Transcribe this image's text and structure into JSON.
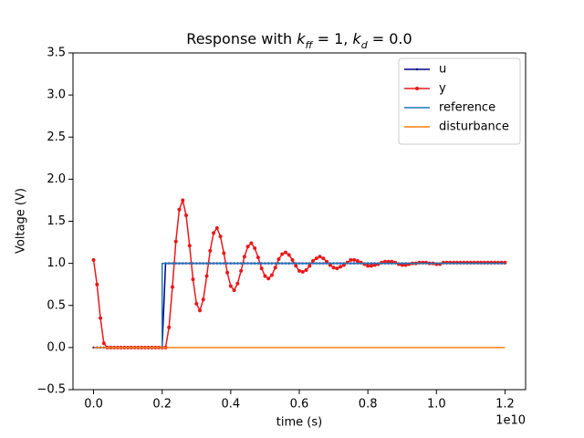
{
  "chart_data": {
    "type": "line",
    "title": [
      {
        "text": "Response with ",
        "style": "normal"
      },
      {
        "text": "k",
        "style": "italic"
      },
      {
        "text": "ff",
        "style": "sub"
      },
      {
        "text": " = 1, ",
        "style": "normal"
      },
      {
        "text": "k",
        "style": "italic"
      },
      {
        "text": "d",
        "style": "sub"
      },
      {
        "text": " = 0.0",
        "style": "normal"
      }
    ],
    "x_label": "time (s)",
    "y_label": "Voltage (V)",
    "x_offset_label": "1e10",
    "xlim": [
      -0.06,
      1.26
    ],
    "ylim": [
      -0.5,
      3.5
    ],
    "xticks": [
      {
        "value": 0,
        "label": "0.0"
      },
      {
        "value": 0.2,
        "label": "0.2"
      },
      {
        "value": 0.4,
        "label": "0.4"
      },
      {
        "value": 0.6,
        "label": "0.6"
      },
      {
        "value": 0.8,
        "label": "0.8"
      },
      {
        "value": 1.0,
        "label": "1.0"
      },
      {
        "value": 1.2,
        "label": "1.2"
      }
    ],
    "yticks": [
      {
        "value": -0.5,
        "label": "−0.5"
      },
      {
        "value": 0,
        "label": "0.0"
      },
      {
        "value": 0.5,
        "label": "0.5"
      },
      {
        "value": 1.0,
        "label": "1.0"
      },
      {
        "value": 1.5,
        "label": "1.5"
      },
      {
        "value": 2.0,
        "label": "2.0"
      },
      {
        "value": 2.5,
        "label": "2.5"
      },
      {
        "value": 3.0,
        "label": "3.0"
      },
      {
        "value": 3.5,
        "label": "3.5"
      }
    ],
    "grid": false,
    "legend_loc": "upper right",
    "x": [
      0,
      0.01,
      0.02,
      0.03,
      0.04,
      0.05,
      0.06,
      0.07,
      0.08,
      0.09,
      0.1,
      0.11,
      0.12,
      0.13,
      0.14,
      0.15,
      0.16,
      0.17,
      0.18,
      0.19,
      0.2,
      0.21,
      0.22,
      0.23,
      0.24,
      0.25,
      0.26,
      0.27,
      0.28,
      0.29,
      0.3,
      0.31,
      0.32,
      0.33,
      0.34,
      0.35,
      0.36,
      0.37,
      0.38,
      0.39,
      0.4,
      0.41,
      0.42,
      0.43,
      0.44,
      0.45,
      0.46,
      0.47,
      0.48,
      0.49,
      0.5,
      0.51,
      0.52,
      0.53,
      0.54,
      0.55,
      0.56,
      0.57,
      0.58,
      0.59,
      0.6,
      0.61,
      0.62,
      0.63,
      0.64,
      0.65,
      0.66,
      0.67,
      0.68,
      0.69,
      0.7,
      0.71,
      0.72,
      0.73,
      0.74,
      0.75,
      0.76,
      0.77,
      0.78,
      0.79,
      0.8,
      0.81,
      0.82,
      0.83,
      0.84,
      0.85,
      0.86,
      0.87,
      0.88,
      0.89,
      0.9,
      0.91,
      0.92,
      0.93,
      0.94,
      0.95,
      0.96,
      0.97,
      0.98,
      0.99,
      1,
      1.01,
      1.02,
      1.03,
      1.04,
      1.05,
      1.06,
      1.07,
      1.08,
      1.09,
      1.1,
      1.11,
      1.12,
      1.13,
      1.14,
      1.15,
      1.16,
      1.17,
      1.18,
      1.19,
      1.2
    ],
    "series": [
      {
        "name": "u",
        "color": "#00008b",
        "marker": 1.2,
        "values": [
          0,
          0,
          0,
          0,
          0,
          0,
          0,
          0,
          0,
          0,
          0,
          0,
          0,
          0,
          0,
          0,
          0,
          0,
          0,
          0,
          0,
          1,
          1,
          1,
          1,
          1,
          1,
          1,
          1,
          1,
          1,
          1,
          1,
          1,
          1,
          1,
          1,
          1,
          1,
          1,
          1,
          1,
          1,
          1,
          1,
          1,
          1,
          1,
          1,
          1,
          1,
          1,
          1,
          1,
          1,
          1,
          1,
          1,
          1,
          1,
          1,
          1,
          1,
          1,
          1,
          1,
          1,
          1,
          1,
          1,
          1,
          1,
          1,
          1,
          1,
          1,
          1,
          1,
          1,
          1,
          1,
          1,
          1,
          1,
          1,
          1,
          1,
          1,
          1,
          1,
          1,
          1,
          1,
          1,
          1,
          1,
          1,
          1,
          1,
          1,
          1,
          1,
          1,
          1,
          1,
          1,
          1,
          1,
          1,
          1,
          1,
          1,
          1,
          1,
          1,
          1,
          1,
          1,
          1,
          1,
          1
        ]
      },
      {
        "name": "y",
        "color": "#e8191b",
        "marker": 2,
        "values": [
          1.04,
          0.75,
          0.35,
          0.05,
          0,
          0,
          0,
          0,
          0,
          0,
          0,
          0,
          0,
          0,
          0,
          0,
          0,
          0,
          0,
          0,
          0,
          0,
          0.24,
          0.72,
          1.26,
          1.64,
          1.75,
          1.57,
          1.21,
          0.81,
          0.52,
          0.44,
          0.57,
          0.85,
          1.15,
          1.36,
          1.42,
          1.32,
          1.12,
          0.89,
          0.73,
          0.68,
          0.76,
          0.91,
          1.08,
          1.2,
          1.24,
          1.18,
          1.07,
          0.94,
          0.85,
          0.82,
          0.86,
          0.95,
          1.05,
          1.11,
          1.13,
          1.1,
          1.04,
          0.97,
          0.91,
          0.9,
          0.92,
          0.97,
          1.03,
          1.06,
          1.08,
          1.06,
          1.02,
          0.98,
          0.95,
          0.94,
          0.96,
          0.98,
          1.01,
          1.04,
          1.04,
          1.03,
          1.01,
          0.99,
          0.97,
          0.97,
          0.98,
          0.99,
          1.01,
          1.02,
          1.02,
          1.02,
          1.01,
          0.99,
          0.98,
          0.98,
          0.99,
          1,
          1,
          1.01,
          1.01,
          1.01,
          1,
          1,
          0.99,
          0.99,
          1.01,
          1.01,
          1.01,
          1.01,
          1.01,
          1.01,
          1.01,
          1.01,
          1.01,
          1.01,
          1.01,
          1.01,
          1.01,
          1.01,
          1.01,
          1.01,
          1.01,
          1.01,
          1.01
        ]
      },
      {
        "name": "reference",
        "color": "#1f77b4",
        "x": [
          0,
          0.2,
          0.2,
          1.2
        ],
        "values": [
          0,
          0,
          1,
          1
        ]
      },
      {
        "name": "disturbance",
        "color": "#ff7f0e",
        "x": [
          0,
          1.2
        ],
        "values": [
          0,
          0
        ]
      }
    ]
  }
}
